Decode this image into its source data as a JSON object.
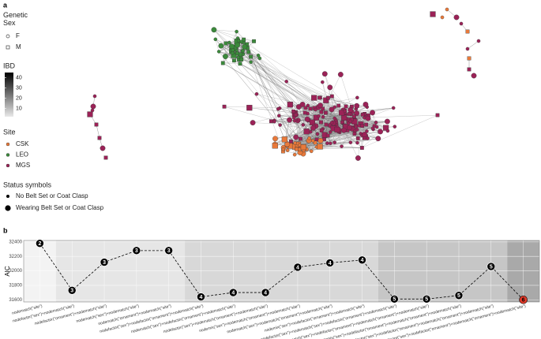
{
  "panel_a": {
    "label": "a",
    "sex_legend": {
      "title": "Genetic Sex",
      "items": [
        "F",
        "M"
      ]
    },
    "ibd_legend": {
      "title": "IBD",
      "lim": [
        2,
        45
      ],
      "ticks": [
        10,
        20,
        30,
        40
      ]
    },
    "site_legend": {
      "title": "Site",
      "items": [
        {
          "name": "CSK",
          "color": "#e8793a"
        },
        {
          "name": "LEO",
          "color": "#3b8a3b"
        },
        {
          "name": "MGS",
          "color": "#9b2257"
        }
      ]
    },
    "status_legend": {
      "title": "Status symbols",
      "items": [
        "No Belt Set or Coat Clasp",
        "Wearing Belt Set or Coat Clasp"
      ]
    }
  },
  "chart_data": {
    "type": "line",
    "label": "b",
    "y_label": "AIC",
    "categories": [
      "nodematch(\"site\")",
      "nodefactor(\"sex\")+nodematch(\"site\")",
      "nodefactor(\"ornament\")+nodematch(\"site\")",
      "nodematch(\"sex\")+nodematch(\"site\")",
      "nodematch(\"ornament\")+nodematch(\"site\")",
      "nodefactor(\"sex\")+nodefactor(\"ornament\")+nodematch(\"site\")",
      "nodematch(\"sex\")+nodefactor(\"ornament\")+nodematch(\"site\")",
      "nodefactor(\"sex\")+nodematch(\"ornament\")+nodematch(\"site\")",
      "nodemix(\"sex\")+nodematch(\"ornament\")+nodematch(\"site\")",
      "nodematch(\"sex\")+nodematch(\"ornament\")+nodematch(\"site\")",
      "nodemix(\"sex\")+nodefactor(\"ornament\")+nodematch(\"site\")",
      "nodefactor(\"sex\")+nodematch(\"sex\")+nodefactor(\"ornament\")+nodematch(\"site\")",
      "nodematch(\"sex\")+nodefactor(\"ornament\")+nodematch(\"ornament\")+nodematch(\"site\")",
      "nodemix(\"sex\")+nodefactor(\"ornament\")+nodematch(\"ornament\")+nodematch(\"site\")",
      "nodefactor(\"sex\")+nodefactor(\"ornament\")+nodematch(\"ornament\")+nodematch(\"site\")",
      "nodemix(\"sex\")+nodefactor(\"sex\")+nodefactor(\"ornament\")+nodematch(\"ornament\")+nodematch(\"site\")"
    ],
    "values": [
      32380,
      31730,
      32120,
      32280,
      32280,
      31640,
      31700,
      31700,
      32050,
      32110,
      32150,
      31610,
      31610,
      31660,
      32060,
      31600
    ],
    "terms": [
      2,
      3,
      3,
      3,
      3,
      4,
      4,
      4,
      4,
      4,
      4,
      5,
      5,
      5,
      5,
      6
    ],
    "ylim": [
      31570,
      32420
    ],
    "yticks": [
      31600,
      31800,
      32000,
      32200,
      32400
    ],
    "grid": true,
    "point_color": "#000000",
    "highlight_color": "#e03a2a",
    "band_colors": [
      "#f3f3f3",
      "#e6e6e6",
      "#d8d8d8",
      "#c6c6c6",
      "#a9a9a9"
    ]
  }
}
